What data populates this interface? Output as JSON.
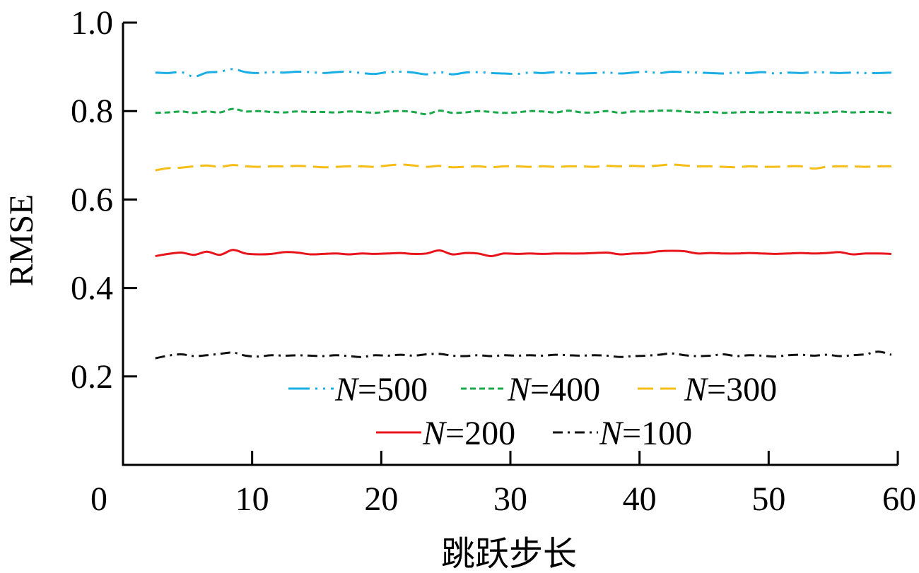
{
  "chart_data": {
    "type": "line",
    "xlabel": "跳跃步长",
    "ylabel": "RMSE",
    "xlim": [
      0,
      60
    ],
    "ylim": [
      0,
      1.0
    ],
    "xticks": [
      "0",
      "10",
      "20",
      "30",
      "40",
      "50",
      "60"
    ],
    "yticks": [
      "0.2",
      "0.4",
      "0.6",
      "0.8",
      "1.0"
    ],
    "grid": false,
    "legend_position": "bottom-center",
    "x": [
      2.5,
      3.5,
      4.5,
      5.5,
      6.5,
      7.5,
      8.5,
      9.5,
      10.5,
      11.5,
      12.5,
      13.5,
      14.5,
      15.5,
      16.5,
      17.5,
      18.5,
      19.5,
      20.5,
      21.5,
      22.5,
      23.5,
      24.5,
      25.5,
      26.5,
      27.5,
      28.5,
      29.5,
      30.5,
      31.5,
      32.5,
      33.5,
      34.5,
      35.5,
      36.5,
      37.5,
      38.5,
      39.5,
      40.5,
      41.5,
      42.5,
      43.5,
      44.5,
      45.5,
      46.5,
      47.5,
      48.5,
      49.5,
      50.5,
      51.5,
      52.5,
      53.5,
      54.5,
      55.5,
      56.5,
      57.5,
      58.5,
      59.5
    ],
    "series": [
      {
        "name": "N=500",
        "var": "N",
        "suffix": "=500",
        "color": "#1aaee5",
        "dash": "30,8,3,8,3,8",
        "values": [
          0.887,
          0.886,
          0.888,
          0.878,
          0.887,
          0.889,
          0.895,
          0.888,
          0.886,
          0.888,
          0.887,
          0.889,
          0.888,
          0.886,
          0.888,
          0.889,
          0.886,
          0.884,
          0.888,
          0.889,
          0.887,
          0.883,
          0.888,
          0.883,
          0.887,
          0.888,
          0.886,
          0.885,
          0.884,
          0.887,
          0.886,
          0.888,
          0.886,
          0.885,
          0.886,
          0.887,
          0.885,
          0.887,
          0.889,
          0.886,
          0.889,
          0.888,
          0.887,
          0.886,
          0.885,
          0.887,
          0.886,
          0.888,
          0.885,
          0.887,
          0.886,
          0.888,
          0.887,
          0.886,
          0.887,
          0.886,
          0.886,
          0.887
        ]
      },
      {
        "name": "N=400",
        "var": "N",
        "suffix": "=400",
        "color": "#1aa84a",
        "dash": "8,5",
        "values": [
          0.796,
          0.797,
          0.799,
          0.796,
          0.799,
          0.797,
          0.805,
          0.799,
          0.8,
          0.798,
          0.797,
          0.799,
          0.798,
          0.798,
          0.797,
          0.799,
          0.798,
          0.796,
          0.799,
          0.8,
          0.798,
          0.793,
          0.801,
          0.796,
          0.797,
          0.8,
          0.798,
          0.796,
          0.797,
          0.8,
          0.799,
          0.797,
          0.801,
          0.797,
          0.797,
          0.8,
          0.796,
          0.799,
          0.799,
          0.801,
          0.801,
          0.799,
          0.797,
          0.798,
          0.796,
          0.797,
          0.798,
          0.797,
          0.798,
          0.797,
          0.797,
          0.796,
          0.797,
          0.799,
          0.797,
          0.798,
          0.798,
          0.796
        ]
      },
      {
        "name": "N=300",
        "var": "N",
        "suffix": "=300",
        "color": "#f5bd16",
        "dash": "22,10",
        "values": [
          0.666,
          0.671,
          0.672,
          0.675,
          0.677,
          0.674,
          0.678,
          0.675,
          0.674,
          0.675,
          0.675,
          0.676,
          0.675,
          0.673,
          0.674,
          0.675,
          0.675,
          0.674,
          0.677,
          0.679,
          0.677,
          0.674,
          0.676,
          0.673,
          0.674,
          0.675,
          0.673,
          0.675,
          0.675,
          0.674,
          0.675,
          0.674,
          0.675,
          0.675,
          0.674,
          0.676,
          0.675,
          0.676,
          0.675,
          0.677,
          0.679,
          0.677,
          0.675,
          0.675,
          0.674,
          0.673,
          0.675,
          0.674,
          0.674,
          0.675,
          0.675,
          0.67,
          0.674,
          0.675,
          0.675,
          0.674,
          0.675,
          0.675
        ]
      },
      {
        "name": "N=200",
        "var": "N",
        "suffix": "=200",
        "color": "#e8141b",
        "dash": "",
        "values": [
          0.472,
          0.477,
          0.48,
          0.475,
          0.482,
          0.475,
          0.486,
          0.478,
          0.476,
          0.477,
          0.481,
          0.48,
          0.476,
          0.477,
          0.478,
          0.476,
          0.478,
          0.477,
          0.478,
          0.479,
          0.477,
          0.478,
          0.485,
          0.476,
          0.479,
          0.478,
          0.472,
          0.478,
          0.477,
          0.478,
          0.477,
          0.478,
          0.478,
          0.478,
          0.479,
          0.48,
          0.476,
          0.478,
          0.479,
          0.483,
          0.484,
          0.483,
          0.478,
          0.479,
          0.478,
          0.478,
          0.479,
          0.478,
          0.477,
          0.478,
          0.479,
          0.478,
          0.479,
          0.481,
          0.476,
          0.478,
          0.478,
          0.477
        ]
      },
      {
        "name": "N=100",
        "var": "N",
        "suffix": "=100",
        "color": "#111111",
        "dash": "14,7,3,7",
        "values": [
          0.241,
          0.247,
          0.25,
          0.246,
          0.248,
          0.251,
          0.254,
          0.247,
          0.245,
          0.248,
          0.247,
          0.248,
          0.247,
          0.246,
          0.248,
          0.246,
          0.244,
          0.248,
          0.247,
          0.249,
          0.247,
          0.25,
          0.251,
          0.247,
          0.246,
          0.248,
          0.246,
          0.248,
          0.247,
          0.248,
          0.247,
          0.249,
          0.248,
          0.247,
          0.248,
          0.247,
          0.244,
          0.246,
          0.247,
          0.249,
          0.252,
          0.248,
          0.246,
          0.247,
          0.25,
          0.246,
          0.248,
          0.247,
          0.245,
          0.248,
          0.249,
          0.247,
          0.249,
          0.246,
          0.248,
          0.25,
          0.256,
          0.249
        ]
      }
    ]
  }
}
